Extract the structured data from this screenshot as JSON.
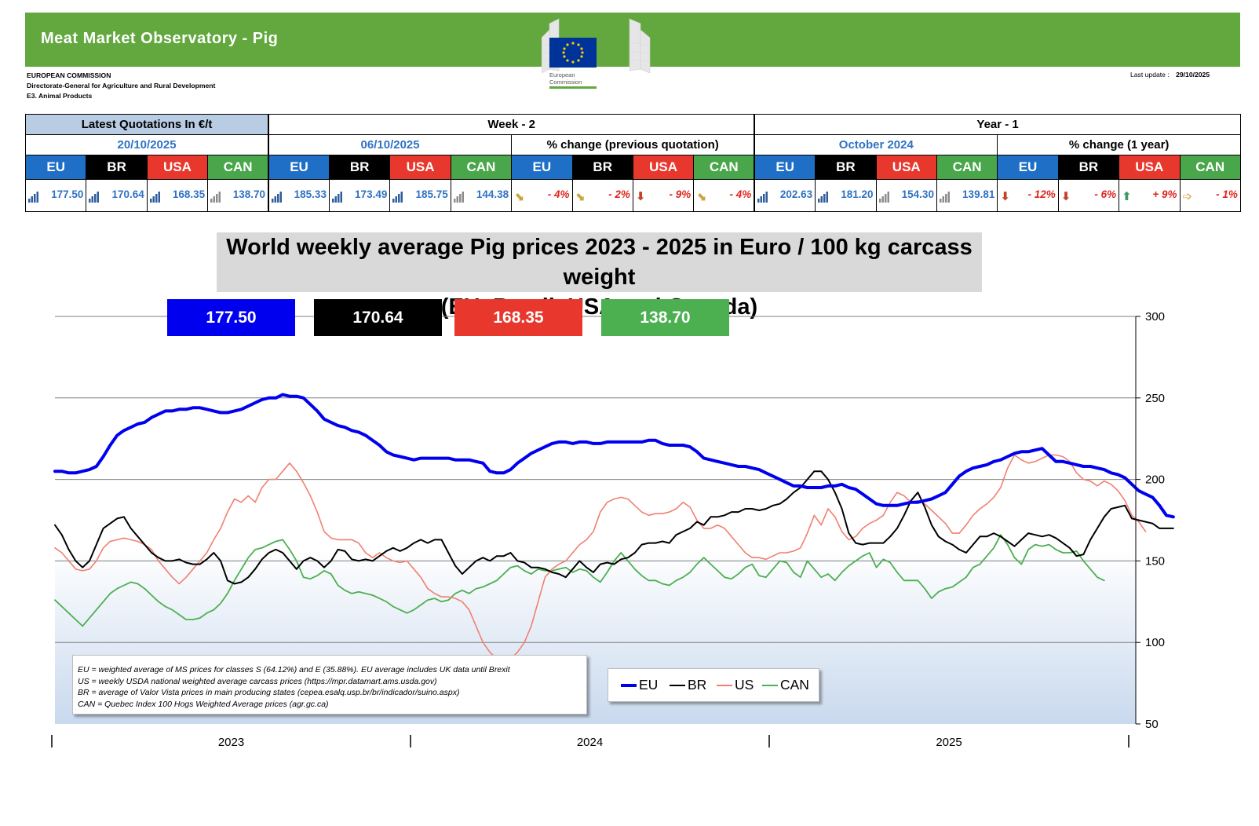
{
  "header": {
    "title": "Meat Market Observatory - Pig",
    "org_lines": [
      "EUROPEAN COMMISSION",
      "Directorate-General for Agriculture and Rural Development",
      "E3. Animal Products"
    ],
    "logo_text": [
      "European",
      "Commission"
    ],
    "last_update_label": "Last update :",
    "last_update_value": "29/10/2025"
  },
  "quotes": {
    "sections": [
      "Latest Quotations In €/t",
      "Week - 2",
      "Year - 1"
    ],
    "subheaders": [
      "20/10/2025",
      "06/10/2025",
      "% change (previous quotation)",
      "October 2024",
      "% change (1 year)"
    ],
    "codes": [
      "EU",
      "BR",
      "USA",
      "CAN"
    ],
    "latest": [
      "177.50",
      "170.64",
      "168.35",
      "138.70"
    ],
    "week2": [
      "185.33",
      "173.49",
      "185.75",
      "144.38"
    ],
    "week2_change": [
      "- 4%",
      "- 2%",
      "- 9%",
      "- 4%"
    ],
    "week2_arrows": [
      "arrow-down-right",
      "arrow-down-right",
      "arrow-down",
      "arrow-down-right"
    ],
    "year1": [
      "202.63",
      "181.20",
      "154.30",
      "139.81"
    ],
    "year1_change": [
      "- 12%",
      "- 6%",
      "+ 9%",
      "- 1%"
    ],
    "year1_arrows": [
      "arrow-down",
      "arrow-down",
      "arrow-up",
      "arrow-right"
    ]
  },
  "chart_title_lines": [
    "World weekly average Pig prices 2023 - 2025  in Euro / 100 kg carcass weight",
    "(EU, Brazil, USA and Canada)"
  ],
  "badges": [
    {
      "value": "177.50",
      "color": "#0000ee"
    },
    {
      "value": "170.64",
      "color": "#000000"
    },
    {
      "value": "168.35",
      "color": "#e8382e"
    },
    {
      "value": "138.70",
      "color": "#4caf50"
    }
  ],
  "notes": [
    "EU    = weighted average of MS prices for classes S (64.12%) and E (35.88%). EU average includes UK data  until Brexit",
    "US    = weekly USDA national weighted average carcass prices (https://mpr.datamart.ams.usda.gov)",
    "BR    = average of Valor Vista prices in main producing states (cepea.esalq.usp.br/br/indicador/suino.aspx)",
    "CAN = Quebec Index 100 Hogs Weighted Average prices (agr.gc.ca)"
  ],
  "colors": {
    "banner": "#62a83f",
    "eu": "#0000ee",
    "br": "#000000",
    "us": "#f08070",
    "can": "#4caf50"
  },
  "chart_data": {
    "type": "line",
    "title": "World weekly average Pig prices 2023 - 2025  in Euro / 100 kg carcass weight (EU, Brazil, USA and Canada)",
    "xlabel": "",
    "ylabel": "",
    "x_unit": "week",
    "x_start_label": "2023",
    "year_labels": [
      "2023",
      "2024",
      "2025"
    ],
    "ylim": [
      50,
      300
    ],
    "yticks": [
      50,
      100,
      150,
      200,
      250,
      300
    ],
    "y_axis_side": "right",
    "grid": true,
    "legend": "bottom-center",
    "series": [
      {
        "name": "EU",
        "color": "#0000ee",
        "values": [
          205,
          205,
          204,
          204,
          205,
          206,
          208,
          214,
          221,
          227,
          230,
          232,
          234,
          235,
          238,
          240,
          242,
          242,
          243,
          243,
          244,
          244,
          243,
          242,
          241,
          241,
          242,
          243,
          245,
          247,
          249,
          250,
          250,
          252,
          251,
          251,
          250,
          246,
          242,
          237,
          235,
          233,
          232,
          230,
          229,
          227,
          224,
          221,
          217,
          215,
          214,
          213,
          212,
          213,
          213,
          213,
          213,
          213,
          212,
          212,
          212,
          211,
          210,
          205,
          204,
          204,
          206,
          210,
          213,
          216,
          218,
          220,
          222,
          223,
          223,
          222,
          223,
          223,
          222,
          222,
          223,
          223,
          223,
          223,
          223,
          223,
          224,
          224,
          222,
          221,
          221,
          221,
          220,
          217,
          213,
          212,
          211,
          210,
          209,
          208,
          208,
          207,
          206,
          204,
          202,
          200,
          198,
          196,
          196,
          195,
          195,
          195,
          196,
          196,
          197,
          195,
          194,
          191,
          188,
          185,
          184,
          184,
          184,
          185,
          186,
          186,
          187,
          188,
          190,
          192,
          197,
          202,
          205,
          207,
          208,
          209,
          211,
          212,
          214,
          216,
          217,
          217,
          218,
          219,
          215,
          211,
          211,
          210,
          209,
          208,
          208,
          207,
          206,
          204,
          203,
          201,
          197,
          193,
          191,
          189,
          184,
          178,
          177
        ]
      },
      {
        "name": "BR",
        "color": "#000000",
        "values": [
          172,
          166,
          157,
          150,
          146,
          150,
          160,
          170,
          173,
          176,
          177,
          170,
          165,
          160,
          155,
          152,
          150,
          150,
          151,
          149,
          148,
          148,
          151,
          155,
          150,
          138,
          136,
          137,
          140,
          145,
          151,
          155,
          157,
          155,
          150,
          145,
          150,
          152,
          150,
          146,
          150,
          157,
          156,
          151,
          150,
          151,
          150,
          153,
          156,
          158,
          156,
          158,
          161,
          163,
          161,
          163,
          163,
          155,
          147,
          142,
          146,
          150,
          152,
          150,
          153,
          153,
          155,
          150,
          149,
          146,
          146,
          145,
          143,
          142,
          140,
          145,
          150,
          146,
          143,
          148,
          149,
          148,
          151,
          152,
          155,
          160,
          161,
          161,
          162,
          161,
          166,
          168,
          170,
          174,
          172,
          177,
          177,
          178,
          180,
          180,
          182,
          182,
          181,
          182,
          184,
          185,
          188,
          192,
          195,
          200,
          205,
          205,
          200,
          192,
          182,
          167,
          161,
          160,
          161,
          161,
          161,
          165,
          170,
          178,
          187,
          192,
          183,
          172,
          165,
          162,
          160,
          157,
          155,
          160,
          165,
          165,
          167,
          165,
          162,
          159,
          163,
          167,
          166,
          165,
          166,
          164,
          161,
          158,
          153,
          154,
          163,
          170,
          177,
          182,
          183,
          184,
          176,
          175,
          174,
          173,
          170,
          170,
          170
        ]
      },
      {
        "name": "US",
        "color": "#f08070",
        "values": [
          158,
          155,
          150,
          145,
          144,
          145,
          150,
          158,
          162,
          163,
          164,
          163,
          162,
          160,
          157,
          150,
          145,
          140,
          136,
          140,
          145,
          150,
          155,
          163,
          170,
          180,
          188,
          186,
          190,
          186,
          195,
          200,
          200,
          205,
          210,
          205,
          198,
          190,
          180,
          168,
          164,
          163,
          163,
          163,
          161,
          155,
          152,
          155,
          152,
          150,
          149,
          150,
          145,
          140,
          133,
          130,
          128,
          128,
          127,
          125,
          120,
          110,
          100,
          94,
          90,
          88,
          90,
          94,
          100,
          110,
          125,
          140,
          145,
          148,
          150,
          155,
          160,
          163,
          168,
          180,
          186,
          188,
          189,
          188,
          184,
          180,
          178,
          179,
          179,
          180,
          182,
          186,
          183,
          175,
          170,
          170,
          172,
          170,
          165,
          160,
          155,
          152,
          152,
          151,
          153,
          155,
          155,
          156,
          158,
          167,
          178,
          172,
          182,
          177,
          168,
          163,
          165,
          170,
          173,
          175,
          178,
          186,
          192,
          190,
          186,
          187,
          185,
          181,
          177,
          173,
          167,
          167,
          172,
          178,
          182,
          185,
          189,
          195,
          207,
          215,
          212,
          210,
          211,
          213,
          215,
          215,
          214,
          211,
          204,
          200,
          199,
          196,
          199,
          197,
          193,
          187,
          178,
          174,
          168
        ]
      },
      {
        "name": "CAN",
        "color": "#4caf50",
        "values": [
          126,
          122,
          118,
          114,
          110,
          115,
          120,
          125,
          130,
          133,
          135,
          137,
          136,
          133,
          129,
          125,
          122,
          120,
          117,
          114,
          114,
          115,
          118,
          120,
          124,
          130,
          138,
          145,
          152,
          157,
          158,
          160,
          162,
          163,
          157,
          150,
          140,
          139,
          141,
          144,
          142,
          135,
          132,
          130,
          131,
          130,
          129,
          127,
          125,
          122,
          120,
          118,
          120,
          123,
          126,
          127,
          125,
          126,
          130,
          132,
          130,
          133,
          134,
          136,
          138,
          142,
          146,
          147,
          144,
          142,
          145,
          144,
          144,
          145,
          146,
          143,
          145,
          144,
          140,
          137,
          143,
          150,
          155,
          150,
          145,
          141,
          138,
          138,
          136,
          135,
          138,
          140,
          143,
          148,
          152,
          148,
          144,
          140,
          139,
          142,
          146,
          148,
          141,
          140,
          145,
          150,
          149,
          143,
          140,
          150,
          145,
          140,
          142,
          138,
          143,
          147,
          150,
          153,
          155,
          146,
          151,
          149,
          143,
          138,
          138,
          138,
          133,
          127,
          131,
          133,
          134,
          137,
          140,
          146,
          148,
          153,
          158,
          166,
          160,
          152,
          148,
          157,
          160,
          159,
          160,
          157,
          155,
          155,
          156,
          150,
          145,
          140,
          138
        ]
      }
    ]
  }
}
